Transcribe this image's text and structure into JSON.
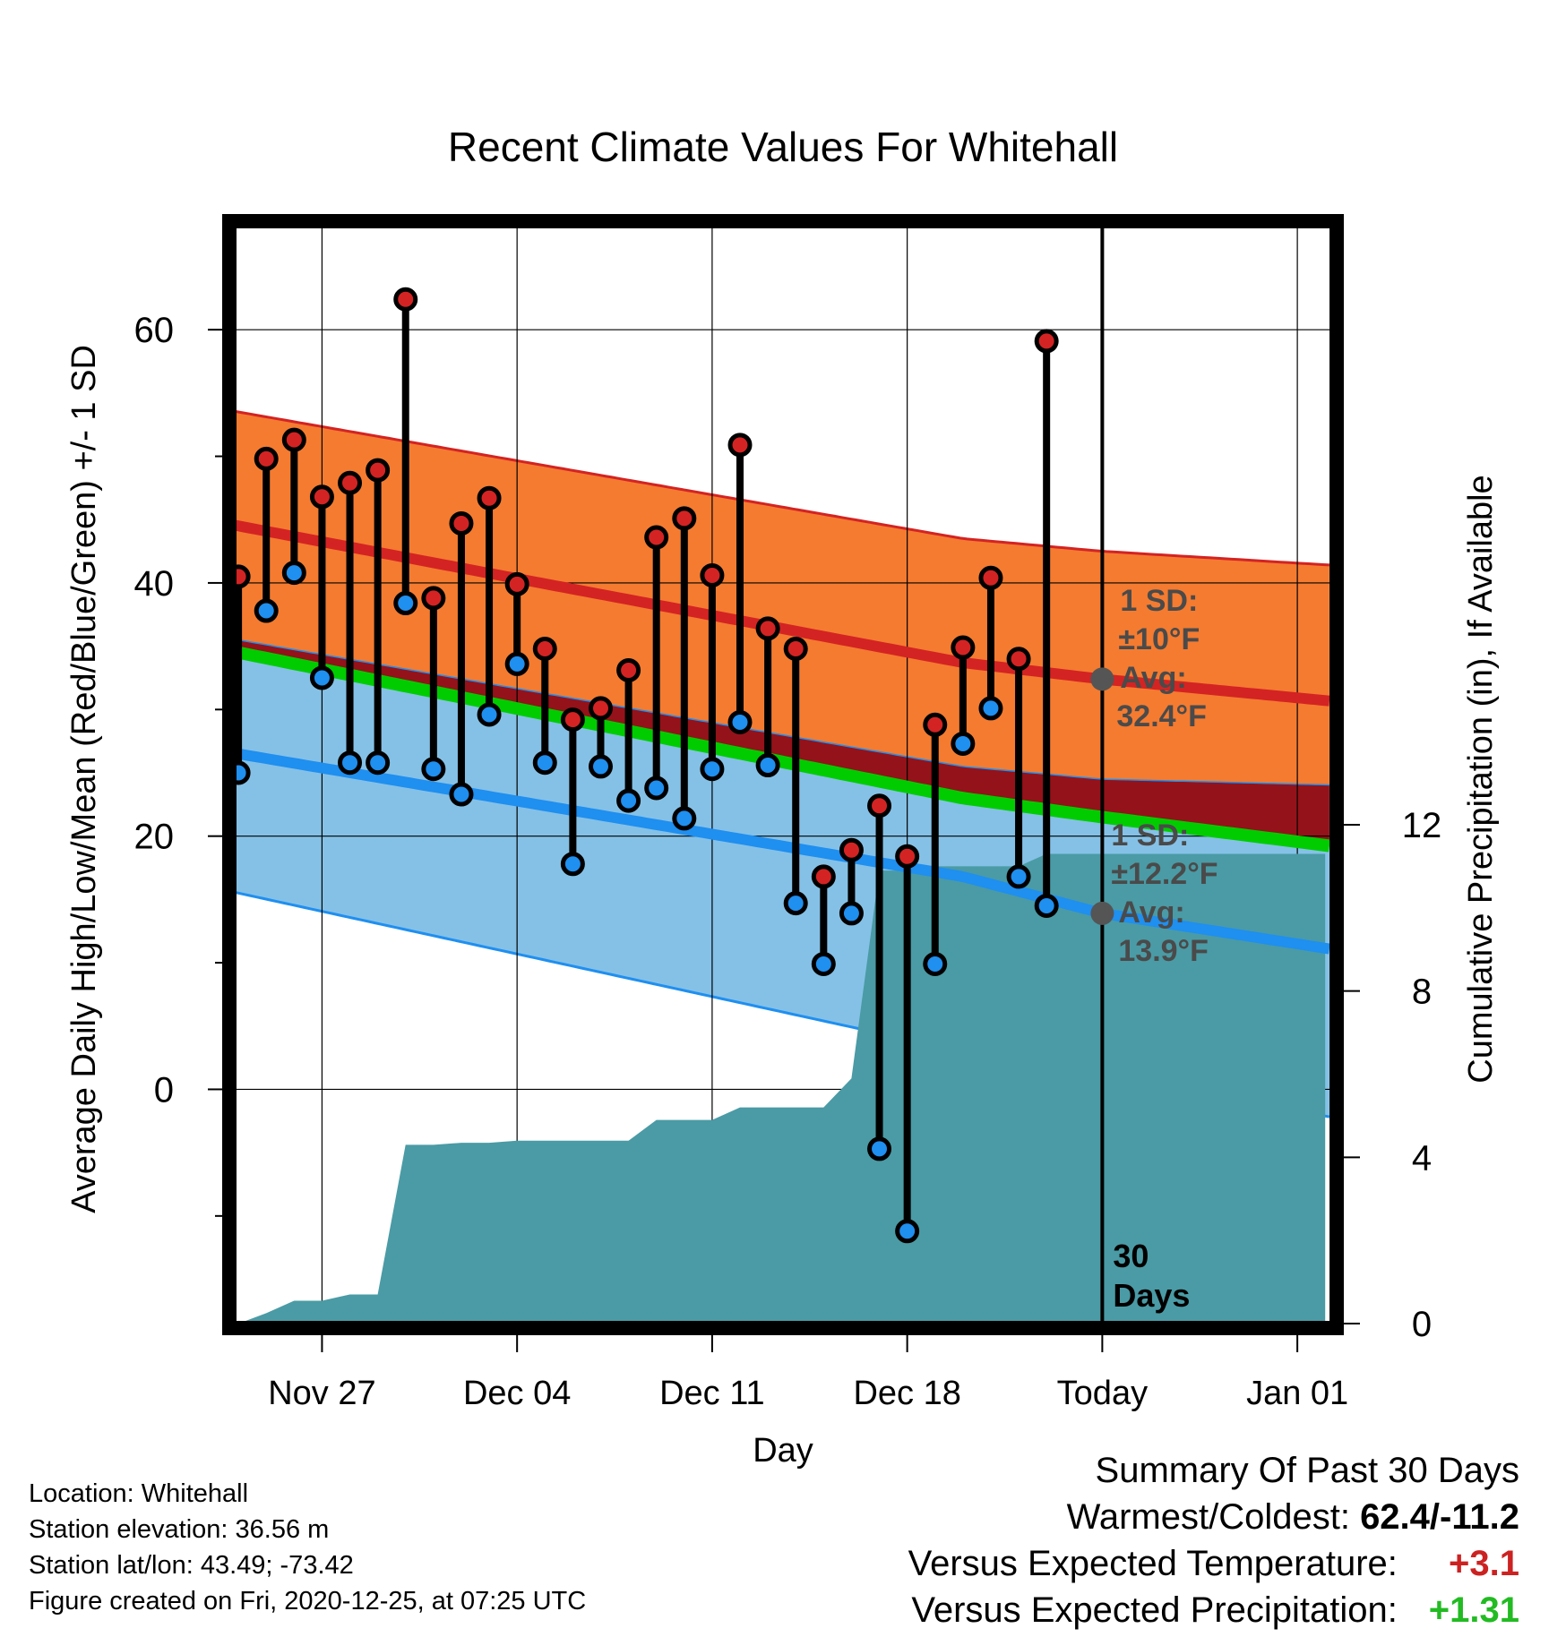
{
  "chart_data": {
    "type": "line",
    "title": "Recent Climate Values For Whitehall",
    "xlabel": "Day",
    "ylabel_left": "Average Daily High/Low/Mean (Red/Blue/Green) +/- 1 SD",
    "ylabel_right": "Cumulative Precipitation (in), If Available",
    "x_tick_labels": [
      {
        "day": 3,
        "label": "Nov 27"
      },
      {
        "day": 10,
        "label": "Dec 04"
      },
      {
        "day": 17,
        "label": "Dec 11"
      },
      {
        "day": 24,
        "label": "Dec 18"
      },
      {
        "day": 31,
        "label": "Today"
      },
      {
        "day": 38,
        "label": "Jan 01"
      }
    ],
    "xlim": [
      -0.1,
      39.25
    ],
    "ylim_left": [
      -18.5,
      68.5
    ],
    "ylim_right": [
      0,
      26.5
    ],
    "left_ticks_labeled": [
      0,
      20,
      40,
      60
    ],
    "left_ticks_minor": [
      -10,
      10,
      30,
      50
    ],
    "right_ticks": [
      0,
      4,
      8,
      12
    ],
    "today_day": 31,
    "today_label_lines": [
      "30",
      "Days"
    ],
    "grid": true,
    "normal_high": {
      "avg": [
        44.5,
        33.7,
        32.4,
        30.5
      ],
      "plus_sd": [
        53.5,
        43.5,
        42.5,
        41.3
      ],
      "minus_sd": [
        35.5,
        25.5,
        24.5,
        24.0
      ],
      "label_lines": [
        "1 SD:",
        "±10°F",
        "Avg:",
        "32.4°F"
      ]
    },
    "normal_low": {
      "avg": [
        26.5,
        16.8,
        13.9,
        10.8
      ],
      "plus_sd": [
        35.5,
        25.5,
        24.5,
        24.0
      ],
      "minus_sd": [
        15.5,
        3.0,
        1.0,
        -2.5
      ],
      "label_lines": [
        "1 SD:",
        "±12.2°F",
        "Avg:",
        "13.9°F"
      ]
    },
    "normal_mean": [
      34.5,
      23.0,
      21.5,
      19.0
    ],
    "normal_days": [
      0,
      26,
      31,
      40
    ],
    "daily": [
      {
        "day": 0,
        "high": 40.5,
        "low": 25.0
      },
      {
        "day": 1,
        "high": 49.8,
        "low": 37.8
      },
      {
        "day": 2,
        "high": 51.3,
        "low": 40.8
      },
      {
        "day": 3,
        "high": 46.8,
        "low": 32.5
      },
      {
        "day": 4,
        "high": 47.9,
        "low": 25.8
      },
      {
        "day": 5,
        "high": 48.9,
        "low": 25.8
      },
      {
        "day": 6,
        "high": 62.4,
        "low": 38.4
      },
      {
        "day": 7,
        "high": 38.8,
        "low": 25.3
      },
      {
        "day": 8,
        "high": 44.7,
        "low": 23.3
      },
      {
        "day": 9,
        "high": 46.7,
        "low": 29.6
      },
      {
        "day": 10,
        "high": 39.9,
        "low": 33.6
      },
      {
        "day": 11,
        "high": 34.8,
        "low": 25.8
      },
      {
        "day": 12,
        "high": 29.2,
        "low": 17.8
      },
      {
        "day": 13,
        "high": 30.1,
        "low": 25.5
      },
      {
        "day": 14,
        "high": 33.1,
        "low": 22.8
      },
      {
        "day": 15,
        "high": 43.6,
        "low": 23.8
      },
      {
        "day": 16,
        "high": 45.1,
        "low": 21.4
      },
      {
        "day": 17,
        "high": 40.6,
        "low": 25.3
      },
      {
        "day": 18,
        "high": 50.9,
        "low": 29.0
      },
      {
        "day": 19,
        "high": 36.4,
        "low": 25.6
      },
      {
        "day": 20,
        "high": 34.8,
        "low": 14.7
      },
      {
        "day": 21,
        "high": 16.8,
        "low": 9.9
      },
      {
        "day": 22,
        "high": 18.9,
        "low": 13.9
      },
      {
        "day": 23,
        "high": 22.4,
        "low": -4.7
      },
      {
        "day": 24,
        "high": 18.4,
        "low": -11.2
      },
      {
        "day": 25,
        "high": 28.8,
        "low": 9.9
      },
      {
        "day": 26,
        "high": 34.9,
        "low": 27.3
      },
      {
        "day": 27,
        "high": 40.4,
        "low": 30.1
      },
      {
        "day": 28,
        "high": 34.0,
        "low": 16.8
      },
      {
        "day": 29,
        "high": 59.1,
        "low": 14.5
      }
    ],
    "precip_cumulative": {
      "day": [
        0,
        1,
        2,
        3,
        4,
        5,
        6,
        7,
        8,
        9,
        10,
        11,
        12,
        13,
        14,
        15,
        16,
        17,
        18,
        19,
        20,
        21,
        22,
        23,
        24,
        25,
        26,
        27,
        28,
        29,
        30,
        31,
        39
      ],
      "value": [
        0.0,
        0.25,
        0.55,
        0.55,
        0.7,
        0.7,
        4.3,
        4.3,
        4.35,
        4.35,
        4.4,
        4.4,
        4.4,
        4.4,
        4.4,
        4.9,
        4.9,
        4.9,
        5.2,
        5.2,
        5.2,
        5.2,
        5.9,
        10.9,
        10.9,
        11.0,
        11.0,
        11.0,
        11.0,
        11.3,
        11.3,
        11.3,
        11.3
      ]
    },
    "colors": {
      "high_sd_band": "#f47b30",
      "high_avg_line": "#d42323",
      "overlap_band": "#941219",
      "mean_line": "#00cc00",
      "low_sd_band": "#85c1e6",
      "low_avg_line": "#1f8ff0",
      "precip_fill": "#4a9ba5",
      "high_marker": "#d42323",
      "low_marker": "#1f8ff0",
      "annotation_text": "#4a4a4a"
    }
  },
  "info": {
    "location": "Location: Whitehall",
    "elevation": "Station elevation: 36.56 m",
    "latlon": "Station lat/lon: 43.49; -73.42",
    "created": "Figure created on Fri, 2020-12-25, at 07:25 UTC"
  },
  "summary": {
    "heading": "Summary Of Past 30 Days",
    "warmest_coldest_label": "Warmest/Coldest:",
    "warmest_coldest_value": "62.4/-11.2",
    "temp_label": "Versus Expected Temperature:",
    "temp_value": "+3.1",
    "precip_label": "Versus Expected Precipitation:",
    "precip_value": "+1.31"
  }
}
